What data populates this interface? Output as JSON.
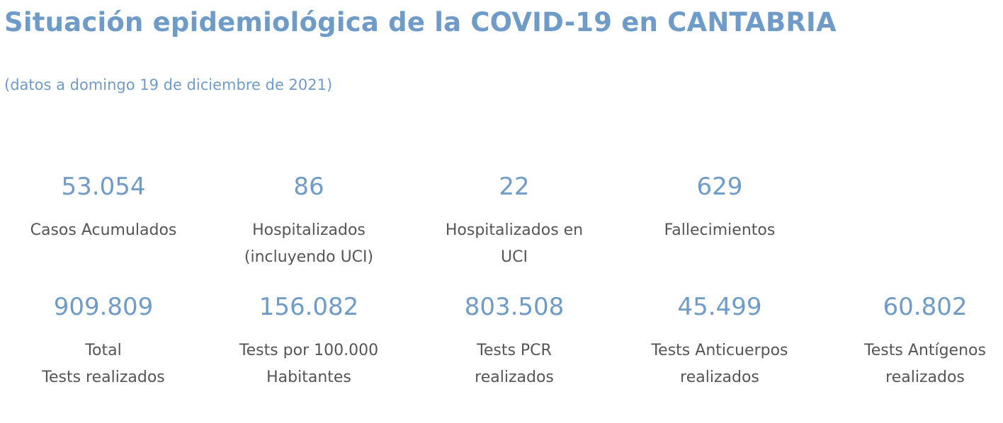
{
  "header": {
    "title": "Situación epidemiológica de la COVID-19 en CANTABRIA",
    "date_note": "(datos a domingo 19 de diciembre de 2021)"
  },
  "colors": {
    "accent": "#6f9bc9",
    "label_text": "#555555"
  },
  "row1": [
    {
      "value": "53.054",
      "label": "Casos Acumulados"
    },
    {
      "value": "86",
      "label": "Hospitalizados\n(incluyendo UCI)"
    },
    {
      "value": "22",
      "label": "Hospitalizados en\nUCI"
    },
    {
      "value": "629",
      "label": "Fallecimientos"
    }
  ],
  "row2": [
    {
      "value": "909.809",
      "label": "Total\nTests realizados"
    },
    {
      "value": "156.082",
      "label": "Tests por 100.000\nHabitantes"
    },
    {
      "value": "803.508",
      "label": " Tests PCR\nrealizados"
    },
    {
      "value": "45.499",
      "label": "Tests Anticuerpos\nrealizados"
    },
    {
      "value": "60.802",
      "label": "Tests Antígenos\nrealizados"
    }
  ]
}
